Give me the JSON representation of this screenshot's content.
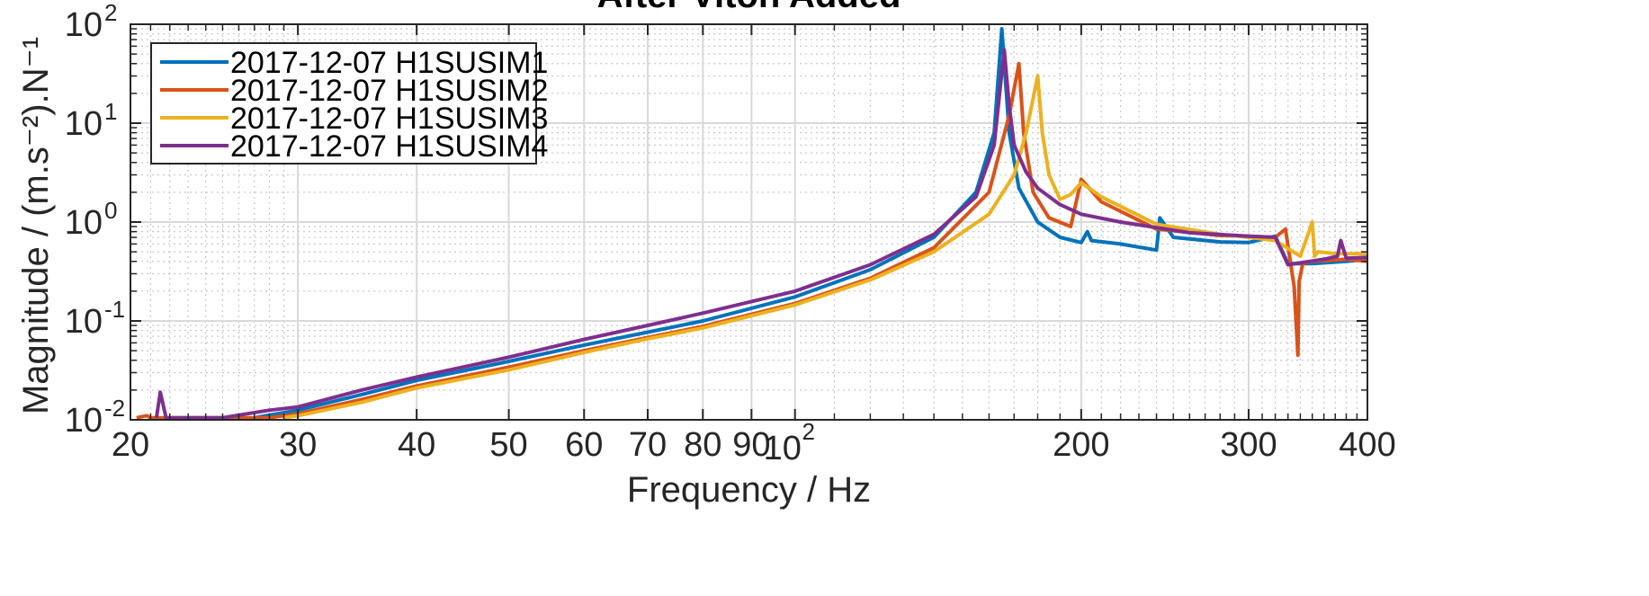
{
  "chart_data": {
    "type": "line",
    "title": "After Viton Added",
    "xlabel": "Frequency / Hz",
    "ylabel": "Magnitude / (m.s⁻²).N⁻¹",
    "x_scale": "log",
    "y_scale": "log",
    "xlim": [
      20,
      400
    ],
    "ylim": [
      0.01,
      100
    ],
    "grid": true,
    "minor_grid": true,
    "legend_position": "top-left",
    "x_ticks": [
      {
        "value": 20,
        "label": "20"
      },
      {
        "value": 30,
        "label": "30"
      },
      {
        "value": 40,
        "label": "40"
      },
      {
        "value": 50,
        "label": "50"
      },
      {
        "value": 60,
        "label": "60"
      },
      {
        "value": 70,
        "label": "70"
      },
      {
        "value": 80,
        "label": "80"
      },
      {
        "value": 90,
        "label": "90"
      },
      {
        "value": 100,
        "label": "10",
        "exp": "2"
      },
      {
        "value": 200,
        "label": "200"
      },
      {
        "value": 300,
        "label": "300"
      },
      {
        "value": 400,
        "label": "400"
      }
    ],
    "y_ticks": [
      {
        "value": 100,
        "label": "10",
        "exp": "2"
      },
      {
        "value": 10,
        "label": "10",
        "exp": "1"
      },
      {
        "value": 1,
        "label": "10",
        "exp": "0"
      },
      {
        "value": 0.1,
        "label": "10",
        "exp": "-1"
      },
      {
        "value": 0.01,
        "label": "10",
        "exp": "-2"
      }
    ],
    "series": [
      {
        "name": "2017-12-07 H1SUSIM1",
        "color": "#0072BD",
        "x": [
          27,
          30,
          35,
          40,
          50,
          60,
          70,
          80,
          100,
          120,
          140,
          155,
          162,
          165,
          168,
          172,
          180,
          190,
          200,
          203,
          205,
          220,
          240,
          242,
          250,
          280,
          300,
          320,
          330,
          350,
          380,
          400
        ],
        "y": [
          0.0105,
          0.0125,
          0.018,
          0.025,
          0.039,
          0.057,
          0.077,
          0.1,
          0.175,
          0.33,
          0.7,
          2.0,
          8.0,
          90,
          8.0,
          2.2,
          1.0,
          0.7,
          0.62,
          0.8,
          0.65,
          0.6,
          0.52,
          1.1,
          0.7,
          0.63,
          0.62,
          0.72,
          0.38,
          0.38,
          0.4,
          0.42
        ]
      },
      {
        "name": "2017-12-07 H1SUSIM2",
        "color": "#D95319",
        "x": [
          20.3,
          20.8,
          21,
          28,
          30,
          35,
          40,
          50,
          60,
          70,
          80,
          100,
          120,
          140,
          160,
          168,
          172,
          174,
          178,
          185,
          195,
          200,
          210,
          240,
          280,
          300,
          320,
          328,
          335,
          338,
          339,
          342,
          350,
          380,
          400
        ],
        "y": [
          0.0105,
          0.011,
          0.0105,
          0.0105,
          0.0115,
          0.016,
          0.022,
          0.034,
          0.05,
          0.068,
          0.088,
          0.15,
          0.27,
          0.55,
          2.0,
          12,
          40,
          8.0,
          2.0,
          1.1,
          0.9,
          2.7,
          1.6,
          0.85,
          0.73,
          0.72,
          0.7,
          0.85,
          0.22,
          0.045,
          0.25,
          0.38,
          0.4,
          0.42,
          0.4
        ]
      },
      {
        "name": "2017-12-07 H1SUSIM3",
        "color": "#EDB120",
        "x": [
          29,
          30,
          35,
          40,
          50,
          60,
          70,
          80,
          100,
          120,
          140,
          160,
          170,
          175,
          180,
          182,
          185,
          190,
          195,
          200,
          210,
          240,
          280,
          300,
          320,
          340,
          350,
          352,
          355,
          370,
          400
        ],
        "y": [
          0.0105,
          0.011,
          0.015,
          0.021,
          0.032,
          0.048,
          0.066,
          0.085,
          0.145,
          0.26,
          0.5,
          1.2,
          3.0,
          8.0,
          30,
          8.0,
          3.0,
          1.7,
          1.9,
          2.5,
          1.8,
          0.95,
          0.75,
          0.7,
          0.65,
          0.45,
          1.0,
          0.45,
          0.5,
          0.48,
          0.48
        ]
      },
      {
        "name": "2017-12-07 H1SUSIM4",
        "color": "#7E2F8E",
        "x": [
          21.3,
          21.5,
          21.8,
          25,
          28,
          30,
          35,
          40,
          50,
          60,
          70,
          80,
          100,
          120,
          140,
          155,
          162,
          166,
          168,
          170,
          175,
          180,
          190,
          200,
          220,
          260,
          300,
          320,
          330,
          360,
          372,
          375,
          380,
          400
        ],
        "y": [
          0.0105,
          0.019,
          0.0105,
          0.0105,
          0.0125,
          0.0135,
          0.02,
          0.027,
          0.043,
          0.065,
          0.09,
          0.12,
          0.2,
          0.37,
          0.75,
          1.8,
          6.0,
          55,
          15,
          6.0,
          3.2,
          2.2,
          1.5,
          1.2,
          1.0,
          0.78,
          0.72,
          0.7,
          0.37,
          0.42,
          0.45,
          0.65,
          0.43,
          0.44
        ]
      }
    ]
  }
}
